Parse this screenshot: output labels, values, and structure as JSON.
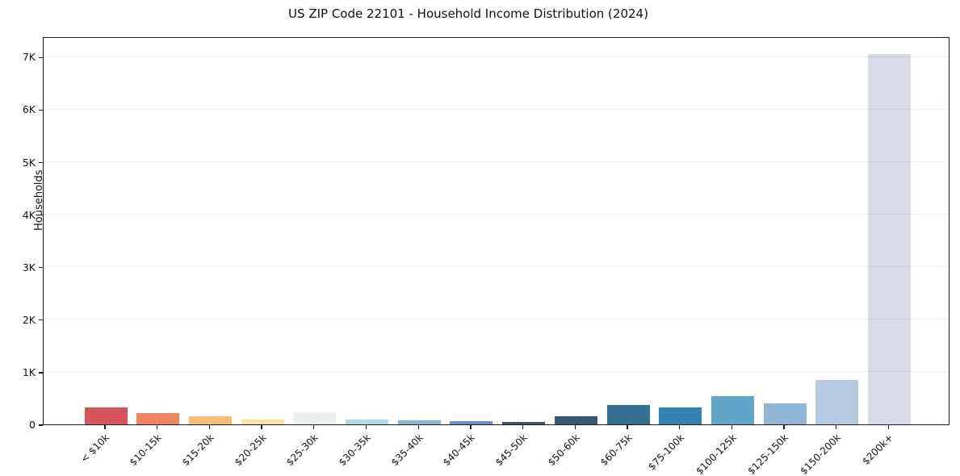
{
  "title": "US ZIP Code 22101 - Household Income Distribution (2024)",
  "chart_data": {
    "type": "bar",
    "title": "US ZIP Code 22101 - Household Income Distribution (2024)",
    "xlabel": "",
    "ylabel": "Households",
    "categories": [
      "< $10k",
      "$10-15k",
      "$15-20k",
      "$20-25k",
      "$25-30k",
      "$30-35k",
      "$35-40k",
      "$40-45k",
      "$45-50k",
      "$50-60k",
      "$60-75k",
      "$75-100k",
      "$100-125k",
      "$125-150k",
      "$150-200k",
      "$200k+"
    ],
    "values": [
      330,
      220,
      160,
      95,
      225,
      95,
      80,
      55,
      40,
      150,
      370,
      330,
      545,
      395,
      850,
      7050
    ],
    "bar_colors": [
      "#d65558",
      "#ef8661",
      "#fabd74",
      "#f8e5a1",
      "#e9f2ef",
      "#b6d9e7",
      "#88b5d7",
      "#6b90bd",
      "#474f78",
      "#345a72",
      "#336f92",
      "#3383b3",
      "#61a5c9",
      "#8fb6d6",
      "#b5c9e1",
      "#d9dae8"
    ],
    "ylim": [
      0,
      7390
    ],
    "yticks": [
      {
        "value": 0,
        "label": "0"
      },
      {
        "value": 1000,
        "label": "1K"
      },
      {
        "value": 2000,
        "label": "2K"
      },
      {
        "value": 3000,
        "label": "3K"
      },
      {
        "value": 4000,
        "label": "4K"
      },
      {
        "value": 5000,
        "label": "5K"
      },
      {
        "value": 6000,
        "label": "6K"
      },
      {
        "value": 7000,
        "label": "7K"
      }
    ],
    "grid": "horizontal",
    "legend_position": "none",
    "frame_color": "#1a1a1a",
    "grid_color": "#ececec",
    "background_color": "#ffffff"
  }
}
